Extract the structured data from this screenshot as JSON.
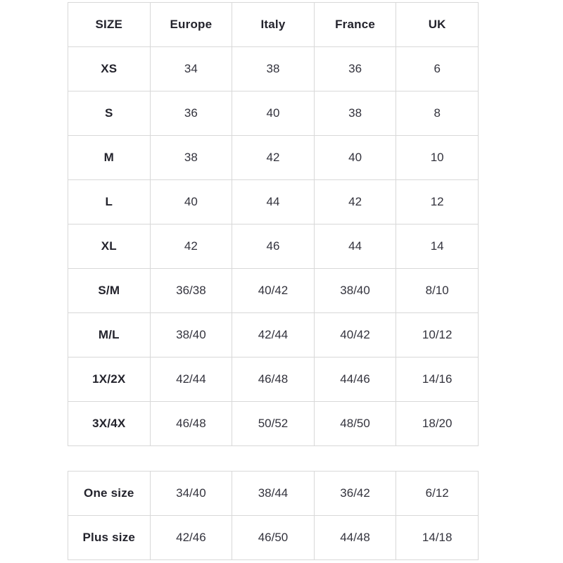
{
  "colors": {
    "background": "#ffffff",
    "border": "#d8d8d8",
    "header_text": "#23232c",
    "cell_text": "#33333d"
  },
  "chart_data": [
    {
      "type": "table",
      "columns": [
        "SIZE",
        "Europe",
        "Italy",
        "France",
        "UK"
      ],
      "rows": [
        [
          "XS",
          "34",
          "38",
          "36",
          "6"
        ],
        [
          "S",
          "36",
          "40",
          "38",
          "8"
        ],
        [
          "M",
          "38",
          "42",
          "40",
          "10"
        ],
        [
          "L",
          "40",
          "44",
          "42",
          "12"
        ],
        [
          "XL",
          "42",
          "46",
          "44",
          "14"
        ],
        [
          "S/M",
          "36/38",
          "40/42",
          "38/40",
          "8/10"
        ],
        [
          "M/L",
          "38/40",
          "42/44",
          "40/42",
          "10/12"
        ],
        [
          "1X/2X",
          "42/44",
          "46/48",
          "44/46",
          "14/16"
        ],
        [
          "3X/4X",
          "46/48",
          "50/52",
          "48/50",
          "18/20"
        ]
      ]
    },
    {
      "type": "table",
      "rows": [
        [
          "One size",
          "34/40",
          "38/44",
          "36/42",
          "6/12"
        ],
        [
          "Plus size",
          "42/46",
          "46/50",
          "44/48",
          "14/18"
        ]
      ]
    }
  ]
}
